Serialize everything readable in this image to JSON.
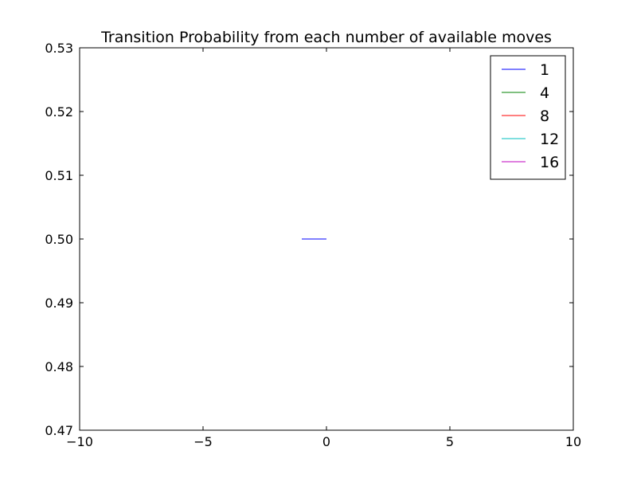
{
  "chart_data": {
    "type": "line",
    "title": "Transition Probability from each number of available moves",
    "xlabel": "",
    "ylabel": "",
    "xlim": [
      -10,
      10
    ],
    "ylim": [
      0.47,
      0.53
    ],
    "x_ticks": [
      -10,
      -5,
      0,
      5,
      10
    ],
    "x_tick_labels": [
      "−10",
      "−5",
      "0",
      "5",
      "10"
    ],
    "y_ticks": [
      0.47,
      0.48,
      0.49,
      0.5,
      0.51,
      0.52,
      0.53
    ],
    "y_tick_labels": [
      "0.47",
      "0.48",
      "0.49",
      "0.50",
      "0.51",
      "0.52",
      "0.53"
    ],
    "grid": false,
    "legend_position": "top-right",
    "series": [
      {
        "name": "1",
        "color": "#0000ff",
        "x": [
          -1,
          0
        ],
        "y": [
          0.5,
          0.5
        ]
      },
      {
        "name": "4",
        "color": "#008000",
        "x": [],
        "y": []
      },
      {
        "name": "8",
        "color": "#ff0000",
        "x": [],
        "y": []
      },
      {
        "name": "12",
        "color": "#00bfbf",
        "x": [],
        "y": []
      },
      {
        "name": "16",
        "color": "#bf00bf",
        "x": [],
        "y": []
      }
    ]
  }
}
